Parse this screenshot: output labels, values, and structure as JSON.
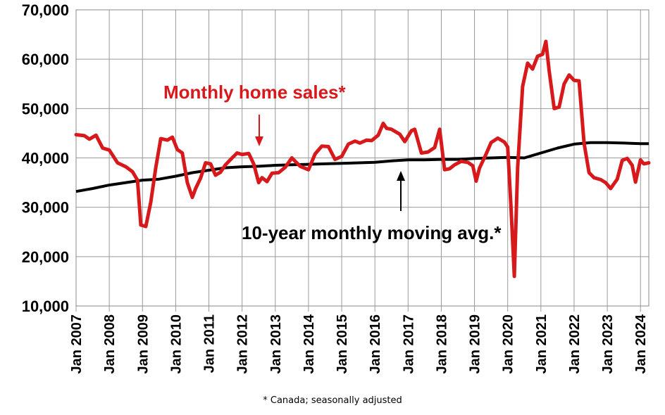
{
  "chart_data": {
    "type": "line",
    "title": "",
    "xlabel": "",
    "ylabel": "",
    "ylim": [
      10000,
      70000
    ],
    "yticks": [
      10000,
      20000,
      30000,
      40000,
      50000,
      60000,
      70000
    ],
    "ytick_labels": [
      "10,000",
      "20,000",
      "30,000",
      "40,000",
      "50,000",
      "60,000",
      "70,000"
    ],
    "xlim": [
      2007.0,
      2024.25
    ],
    "xticks": [
      2007,
      2008,
      2009,
      2010,
      2011,
      2012,
      2013,
      2014,
      2015,
      2016,
      2017,
      2018,
      2019,
      2020,
      2021,
      2022,
      2023,
      2024
    ],
    "xtick_labels": [
      "Jan 2007",
      "Jan 2008",
      "Jan 2009",
      "Jan 2010",
      "Jan 2011",
      "Jan 2012",
      "Jan 2013",
      "Jan 2014",
      "Jan 2015",
      "Jan 2016",
      "Jan 2017",
      "Jan 2018",
      "Jan 2019",
      "Jan 2020",
      "Jan 2021",
      "Jan 2022",
      "Jan 2023",
      "Jan 2024"
    ],
    "grid": true,
    "series": [
      {
        "name": "Monthly home sales*",
        "color": "#d7191c",
        "x": [
          2007.0,
          2007.25,
          2007.4,
          2007.6,
          2007.8,
          2008.0,
          2008.25,
          2008.5,
          2008.7,
          2008.85,
          2008.95,
          2009.1,
          2009.25,
          2009.4,
          2009.55,
          2009.75,
          2009.9,
          2010.05,
          2010.2,
          2010.35,
          2010.5,
          2010.6,
          2010.75,
          2010.9,
          2011.05,
          2011.2,
          2011.35,
          2011.5,
          2011.7,
          2011.85,
          2012.0,
          2012.2,
          2012.35,
          2012.5,
          2012.6,
          2012.75,
          2012.9,
          2013.1,
          2013.3,
          2013.5,
          2013.75,
          2014.0,
          2014.2,
          2014.4,
          2014.6,
          2014.8,
          2015.0,
          2015.2,
          2015.4,
          2015.55,
          2015.75,
          2015.9,
          2016.1,
          2016.25,
          2016.35,
          2016.5,
          2016.75,
          2016.9,
          2017.1,
          2017.2,
          2017.4,
          2017.6,
          2017.8,
          2017.95,
          2018.1,
          2018.25,
          2018.4,
          2018.6,
          2018.8,
          2018.95,
          2019.05,
          2019.15,
          2019.35,
          2019.5,
          2019.7,
          2019.9,
          2020.0,
          2020.1,
          2020.2,
          2020.3,
          2020.45,
          2020.6,
          2020.75,
          2020.9,
          2021.05,
          2021.15,
          2021.25,
          2021.4,
          2021.55,
          2021.7,
          2021.85,
          2022.0,
          2022.15,
          2022.3,
          2022.45,
          2022.6,
          2022.8,
          2022.95,
          2023.1,
          2023.3,
          2023.45,
          2023.6,
          2023.75,
          2023.85,
          2024.0,
          2024.1,
          2024.25
        ],
        "values": [
          44700,
          44500,
          43800,
          44600,
          42000,
          41600,
          39000,
          38200,
          37200,
          35500,
          26400,
          26100,
          31000,
          38000,
          43900,
          43600,
          44200,
          41700,
          41000,
          35000,
          32000,
          33800,
          35900,
          39000,
          38800,
          36500,
          37100,
          38600,
          40000,
          41000,
          40700,
          40900,
          38800,
          35000,
          36000,
          35200,
          36900,
          37000,
          38100,
          40000,
          38300,
          37600,
          40800,
          42400,
          42300,
          39700,
          40300,
          42800,
          43400,
          43000,
          43600,
          43500,
          44600,
          47000,
          46000,
          45800,
          44800,
          43300,
          45500,
          45800,
          41000,
          41200,
          42100,
          45800,
          37600,
          37800,
          38600,
          39300,
          39100,
          38400,
          35300,
          37900,
          40800,
          43100,
          44000,
          43200,
          42200,
          30000,
          16000,
          38000,
          54500,
          59200,
          58000,
          60600,
          61000,
          63600,
          57600,
          50000,
          50300,
          55000,
          56800,
          55700,
          55600,
          43000,
          37000,
          36000,
          35600,
          35000,
          33800,
          35700,
          39500,
          39900,
          38500,
          35100,
          39600,
          38800,
          39000
        ]
      },
      {
        "name": "10-year monthly moving avg.*",
        "color": "#000000",
        "x": [
          2007.0,
          2007.5,
          2008.0,
          2008.5,
          2009.0,
          2009.5,
          2010.0,
          2010.5,
          2011.0,
          2011.5,
          2012.0,
          2012.5,
          2013.0,
          2013.5,
          2014.0,
          2014.5,
          2015.0,
          2015.5,
          2016.0,
          2016.5,
          2017.0,
          2017.5,
          2018.0,
          2018.5,
          2019.0,
          2019.5,
          2020.0,
          2020.5,
          2021.0,
          2021.5,
          2022.0,
          2022.5,
          2023.0,
          2023.5,
          2024.0,
          2024.25
        ],
        "values": [
          33200,
          33800,
          34500,
          35000,
          35500,
          35700,
          36300,
          37000,
          37500,
          38000,
          38200,
          38300,
          38500,
          38600,
          38700,
          38800,
          38900,
          39000,
          39100,
          39400,
          39600,
          39600,
          39700,
          39700,
          39900,
          40000,
          40100,
          40000,
          41000,
          42000,
          42800,
          43100,
          43100,
          43000,
          42900,
          42900
        ]
      }
    ],
    "annotations": {
      "sales_label": "Monthly home sales*",
      "avg_label": "10-year monthly moving avg.*"
    },
    "footnote": "* Canada; seasonally adjusted"
  }
}
